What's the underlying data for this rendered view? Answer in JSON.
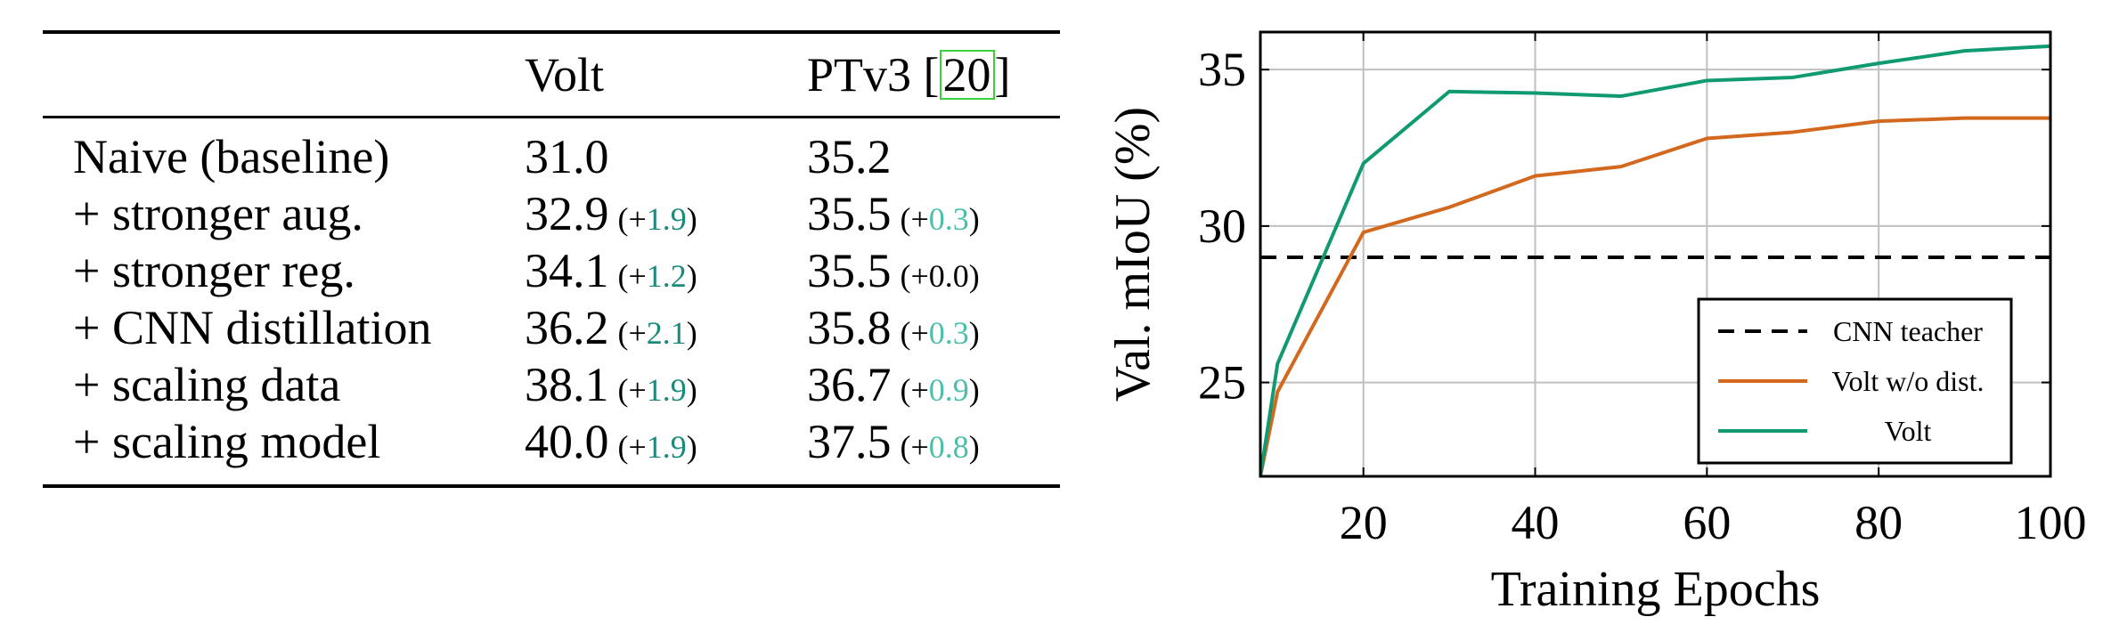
{
  "table": {
    "columns": [
      "Volt",
      "PTv3 ["
    ],
    "column_cite": "20",
    "column_close": "]",
    "rows": [
      {
        "label": "Naive (baseline)",
        "volt": "31.0",
        "volt_delta": "",
        "ptv3": "35.2",
        "ptv3_delta": ""
      },
      {
        "label": "+ stronger aug.",
        "volt": "32.9",
        "volt_delta": "1.9",
        "ptv3": "35.5",
        "ptv3_delta": "0.3"
      },
      {
        "label": "+ stronger reg.",
        "volt": "34.1",
        "volt_delta": "1.2",
        "ptv3": "35.5",
        "ptv3_delta": "0.0"
      },
      {
        "label": "+ CNN distillation",
        "volt": "36.2",
        "volt_delta": "2.1",
        "ptv3": "35.8",
        "ptv3_delta": "0.3"
      },
      {
        "label": "+ scaling data",
        "volt": "38.1",
        "volt_delta": "1.9",
        "ptv3": "36.7",
        "ptv3_delta": "0.9"
      },
      {
        "label": "+ scaling model",
        "volt": "40.0",
        "volt_delta": "1.9",
        "ptv3": "37.5",
        "ptv3_delta": "0.8"
      }
    ],
    "delta_prefix": "(+",
    "delta_suffix": ")"
  },
  "chart_data": {
    "type": "line",
    "xlabel": "Training Epochs",
    "ylabel": "Val. mIoU (%)",
    "xlim": [
      8,
      100
    ],
    "ylim": [
      22,
      36.2
    ],
    "xticks": [
      20,
      40,
      60,
      80,
      100
    ],
    "yticks": [
      25,
      30,
      35
    ],
    "grid": true,
    "legend": "bottom-right",
    "series": [
      {
        "name": "CNN teacher",
        "color": "#000000",
        "style": "dashed",
        "x": [
          8,
          100
        ],
        "y": [
          29,
          29
        ]
      },
      {
        "name": "Volt w/o dist.",
        "color": "#d2691e",
        "style": "solid",
        "x": [
          8,
          10,
          20,
          30,
          40,
          50,
          60,
          70,
          80,
          90,
          100
        ],
        "y": [
          22.0,
          24.7,
          29.8,
          30.6,
          31.6,
          31.9,
          32.8,
          33.0,
          33.35,
          33.45,
          33.45
        ]
      },
      {
        "name": "Volt",
        "color": "#109a72",
        "style": "solid",
        "x": [
          8,
          10,
          20,
          30,
          40,
          50,
          60,
          70,
          80,
          90,
          100
        ],
        "y": [
          22.0,
          25.6,
          32.0,
          34.3,
          34.25,
          34.15,
          34.65,
          34.75,
          35.2,
          35.6,
          35.75
        ]
      }
    ]
  }
}
